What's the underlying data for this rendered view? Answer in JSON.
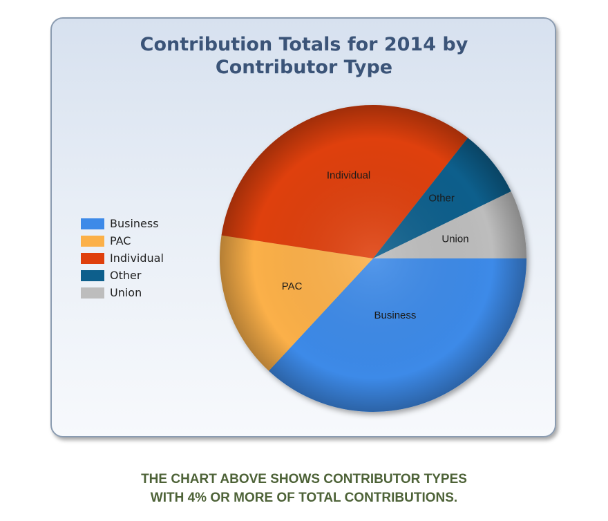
{
  "chart_data": {
    "type": "pie",
    "title": "Contribution Totals for 2014 by Contributor Type",
    "slices": [
      {
        "label": "Business",
        "value": 36.9,
        "color": "#3d8ae8"
      },
      {
        "label": "PAC",
        "value": 15.5,
        "color": "#fbb048"
      },
      {
        "label": "Individual",
        "value": 33.2,
        "color": "#df3f0c"
      },
      {
        "label": "Other",
        "value": 7.2,
        "color": "#0d5f8c"
      },
      {
        "label": "Union",
        "value": 7.2,
        "color": "#bdbdbd"
      }
    ],
    "legend": {
      "position": "left",
      "entries": [
        "Business",
        "PAC",
        "Individual",
        "Other",
        "Union"
      ]
    }
  },
  "caption": {
    "line1": "THE CHART ABOVE SHOWS CONTRIBUTOR TYPES",
    "line2": "WITH 4% OR MORE OF TOTAL CONTRIBUTIONS."
  }
}
